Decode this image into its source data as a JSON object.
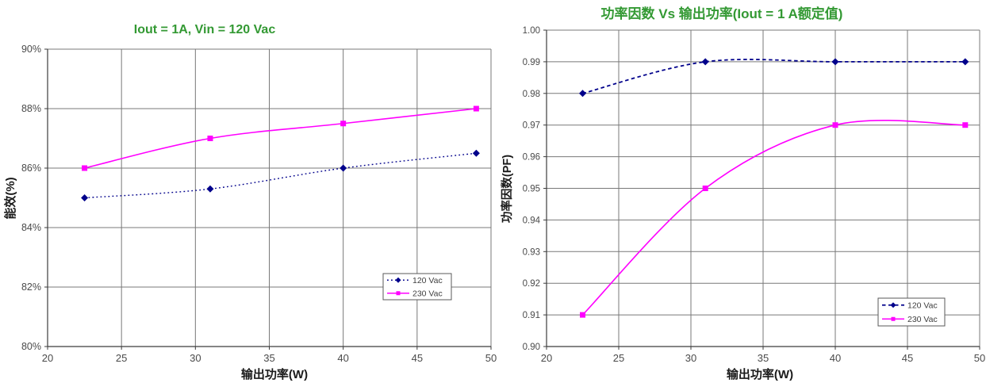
{
  "page": {
    "background": "#ffffff"
  },
  "colors": {
    "title_green": "#339933",
    "series_120vac": "#00008B",
    "series_230vac": "#FF00FF",
    "gridline": "#787878",
    "axis": "#3c3c3c",
    "tick_label": "#4a4a4a",
    "axis_title": "#1a1a1a",
    "legend_border": "#595959",
    "legend_text": "#404040",
    "legend_fill": "#ffffff"
  },
  "chart_data": [
    {
      "id": "efficiency",
      "type": "line",
      "title": "Iout = 1A, Vin = 120 Vac",
      "xlabel": "输出功率(W)",
      "ylabel": "能效(%)",
      "xlim": [
        20,
        50
      ],
      "ylim": [
        80,
        90
      ],
      "x_ticks": [
        20,
        25,
        30,
        35,
        40,
        45,
        50
      ],
      "x_tick_labels": [
        "20",
        "25",
        "30",
        "35",
        "40",
        "45",
        "50"
      ],
      "y_ticks": [
        80,
        82,
        84,
        86,
        88,
        90
      ],
      "y_tick_labels": [
        "80%",
        "82%",
        "84%",
        "86%",
        "88%",
        "90%"
      ],
      "grid": true,
      "legend_position": "inside-lower-right",
      "series": [
        {
          "name": "120 Vac",
          "color": "#00008B",
          "line_style": "dotted",
          "marker": "diamond",
          "x": [
            22.5,
            31,
            40,
            49
          ],
          "y": [
            85.0,
            85.3,
            86.0,
            86.5
          ]
        },
        {
          "name": "230 Vac",
          "color": "#FF00FF",
          "line_style": "solid",
          "marker": "square",
          "x": [
            22.5,
            31,
            40,
            49
          ],
          "y": [
            86.0,
            87.0,
            87.5,
            88.0
          ]
        }
      ]
    },
    {
      "id": "power-factor",
      "type": "line",
      "title": "功率因数 Vs 输出功率(Iout = 1 A额定值)",
      "xlabel": "输出功率(W)",
      "ylabel": "功率因数(PF)",
      "xlim": [
        20,
        50
      ],
      "ylim": [
        0.9,
        1.0
      ],
      "x_ticks": [
        20,
        25,
        30,
        35,
        40,
        45,
        50
      ],
      "x_tick_labels": [
        "20",
        "25",
        "30",
        "35",
        "40",
        "45",
        "50"
      ],
      "y_ticks": [
        0.9,
        0.91,
        0.92,
        0.93,
        0.94,
        0.95,
        0.96,
        0.97,
        0.98,
        0.99,
        1.0
      ],
      "y_tick_labels": [
        "0.90",
        "0.91",
        "0.92",
        "0.93",
        "0.94",
        "0.95",
        "0.96",
        "0.97",
        "0.98",
        "0.99",
        "1.00"
      ],
      "grid": true,
      "legend_position": "inside-lower-right",
      "series": [
        {
          "name": "120 Vac",
          "color": "#00008B",
          "line_style": "dashed",
          "marker": "diamond",
          "x": [
            22.5,
            31,
            40,
            49
          ],
          "y": [
            0.98,
            0.99,
            0.99,
            0.99
          ]
        },
        {
          "name": "230 Vac",
          "color": "#FF00FF",
          "line_style": "solid",
          "marker": "square",
          "x": [
            22.5,
            31,
            40,
            49
          ],
          "y": [
            0.91,
            0.95,
            0.97,
            0.97
          ]
        }
      ]
    }
  ]
}
